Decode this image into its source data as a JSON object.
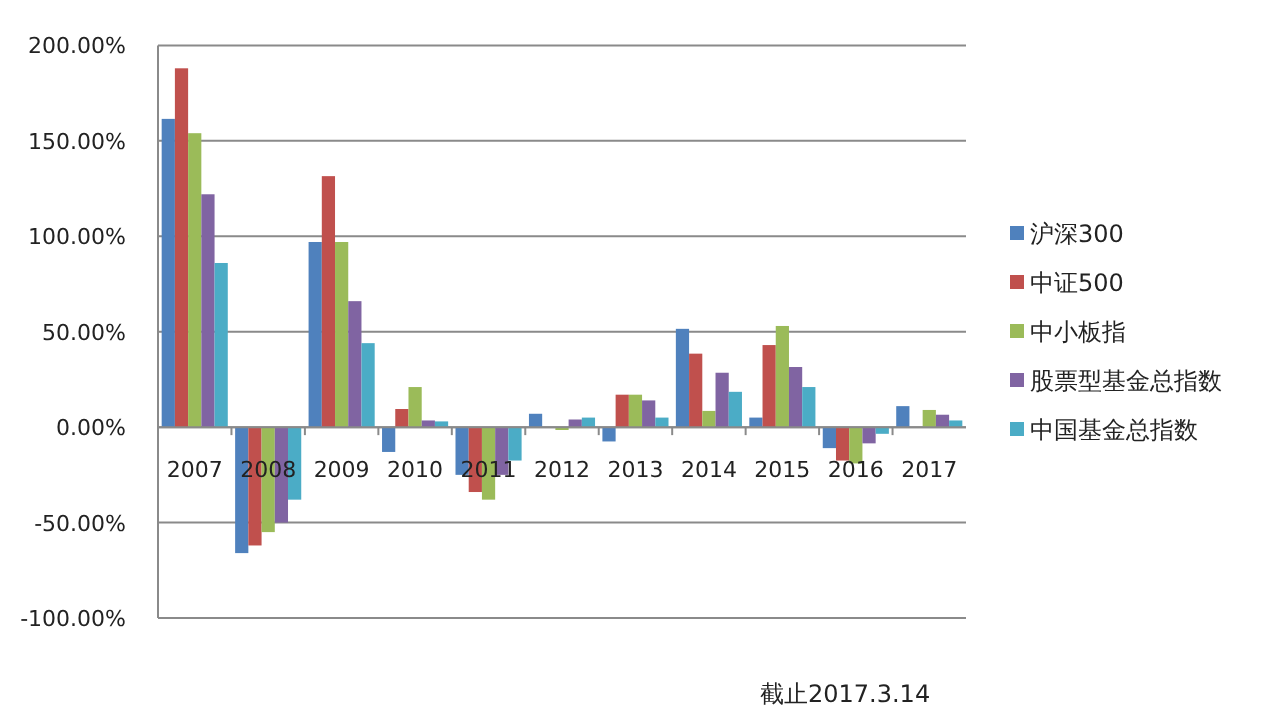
{
  "chart_data": {
    "type": "bar",
    "categories": [
      "2007",
      "2008",
      "2009",
      "2010",
      "2011",
      "2012",
      "2013",
      "2014",
      "2015",
      "2016",
      "2017"
    ],
    "series": [
      {
        "name": "沪深300",
        "color": "#4f81bd",
        "values": [
          161.5,
          -66,
          97,
          -13,
          -25,
          7,
          -7.5,
          51.5,
          5,
          -11,
          11
        ]
      },
      {
        "name": "中证500",
        "color": "#c0504d",
        "values": [
          188,
          -62,
          131.5,
          9.5,
          -34,
          0,
          17,
          38.5,
          43,
          -17.5,
          0
        ]
      },
      {
        "name": "中小板指",
        "color": "#9bbb59",
        "values": [
          154,
          -55,
          97,
          21,
          -38,
          -1.5,
          17,
          8.5,
          53,
          -19,
          9
        ]
      },
      {
        "name": "股票型基金总指数",
        "color": "#8064a2",
        "values": [
          122,
          -50,
          66,
          3.5,
          -25,
          4,
          14,
          28.5,
          31.5,
          -8.5,
          6.5
        ]
      },
      {
        "name": "中国基金总指数",
        "color": "#4bacc6",
        "values": [
          86,
          -38,
          44,
          3,
          -17.5,
          5,
          5,
          18.5,
          21,
          -3.5,
          3.5
        ]
      }
    ],
    "ylim": [
      -100,
      200
    ],
    "yticks": [
      {
        "value": -100,
        "label": "-100.00%"
      },
      {
        "value": -50,
        "label": "-50.00%"
      },
      {
        "value": 0,
        "label": "0.00%"
      },
      {
        "value": 50,
        "label": "50.00%"
      },
      {
        "value": 100,
        "label": "100.00%"
      },
      {
        "value": 150,
        "label": "150.00%"
      },
      {
        "value": 200,
        "label": "200.00%"
      }
    ],
    "grid": "y",
    "legend": "right",
    "annotations": [
      "截止2017.3.14"
    ]
  }
}
